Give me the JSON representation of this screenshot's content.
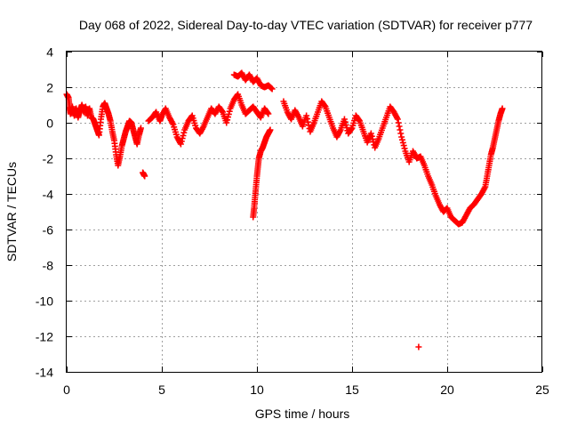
{
  "chart_data": {
    "type": "scatter",
    "title": "Day 068 of 2022, Sidereal Day-to-day VTEC variation (SDTVAR) for receiver p777",
    "xlabel": "GPS time / hours",
    "ylabel": "SDTVAR / TECUs",
    "xlim": [
      0,
      25
    ],
    "ylim": [
      -14,
      4
    ],
    "xticks": [
      0,
      5,
      10,
      15,
      20,
      25
    ],
    "yticks": [
      4,
      2,
      0,
      -2,
      -4,
      -6,
      -8,
      -10,
      -12,
      -14
    ],
    "grid": true,
    "marker": "+",
    "color": "#ff0000",
    "series": [
      {
        "name": "SDTVAR",
        "points": [
          [
            0.0,
            1.6
          ],
          [
            0.1,
            1.4
          ],
          [
            0.15,
            0.9
          ],
          [
            0.2,
            0.5
          ],
          [
            0.3,
            0.9
          ],
          [
            0.4,
            0.4
          ],
          [
            0.5,
            0.8
          ],
          [
            0.6,
            0.3
          ],
          [
            0.7,
            0.7
          ],
          [
            0.8,
            1.0
          ],
          [
            0.9,
            0.6
          ],
          [
            1.0,
            0.9
          ],
          [
            1.1,
            0.4
          ],
          [
            1.2,
            0.8
          ],
          [
            1.3,
            0.3
          ],
          [
            1.4,
            0.2
          ],
          [
            1.5,
            -0.1
          ],
          [
            1.6,
            -0.4
          ],
          [
            1.7,
            -0.7
          ],
          [
            1.8,
            0.2
          ],
          [
            1.9,
            0.9
          ],
          [
            2.0,
            1.1
          ],
          [
            2.1,
            0.8
          ],
          [
            2.2,
            0.5
          ],
          [
            2.3,
            0.1
          ],
          [
            2.4,
            -0.5
          ],
          [
            2.5,
            -1.0
          ],
          [
            2.6,
            -1.8
          ],
          [
            2.7,
            -2.4
          ],
          [
            2.8,
            -1.9
          ],
          [
            2.9,
            -1.3
          ],
          [
            3.0,
            -0.9
          ],
          [
            3.1,
            -0.5
          ],
          [
            3.2,
            -0.2
          ],
          [
            3.3,
            0.1
          ],
          [
            3.4,
            0.0
          ],
          [
            3.5,
            -0.4
          ],
          [
            3.6,
            -0.8
          ],
          [
            3.7,
            -1.2
          ],
          [
            3.8,
            -0.7
          ],
          [
            3.9,
            -0.3
          ],
          [
            4.0,
            -2.8
          ],
          [
            4.1,
            -3.0
          ],
          [
            4.3,
            0.1
          ],
          [
            4.5,
            0.3
          ],
          [
            4.7,
            0.6
          ],
          [
            4.9,
            0.1
          ],
          [
            5.0,
            0.4
          ],
          [
            5.2,
            0.8
          ],
          [
            5.4,
            0.3
          ],
          [
            5.6,
            -0.1
          ],
          [
            5.8,
            -0.8
          ],
          [
            6.0,
            -1.2
          ],
          [
            6.2,
            -0.4
          ],
          [
            6.4,
            0.1
          ],
          [
            6.6,
            0.4
          ],
          [
            6.8,
            -0.3
          ],
          [
            7.0,
            -0.6
          ],
          [
            7.2,
            -0.2
          ],
          [
            7.4,
            0.3
          ],
          [
            7.6,
            0.8
          ],
          [
            7.8,
            0.5
          ],
          [
            8.0,
            0.9
          ],
          [
            8.2,
            0.6
          ],
          [
            8.4,
            0.0
          ],
          [
            8.6,
            0.8
          ],
          [
            8.8,
            1.3
          ],
          [
            9.0,
            1.6
          ],
          [
            9.2,
            1.0
          ],
          [
            9.4,
            0.5
          ],
          [
            9.6,
            0.7
          ],
          [
            9.8,
            0.9
          ],
          [
            10.0,
            0.6
          ],
          [
            10.2,
            0.3
          ],
          [
            10.4,
            0.8
          ],
          [
            10.6,
            0.5
          ],
          [
            8.8,
            2.7
          ],
          [
            9.0,
            2.6
          ],
          [
            9.2,
            2.8
          ],
          [
            9.4,
            2.4
          ],
          [
            9.6,
            2.7
          ],
          [
            9.8,
            2.3
          ],
          [
            10.0,
            2.5
          ],
          [
            10.2,
            2.1
          ],
          [
            10.4,
            2.0
          ],
          [
            10.6,
            2.1
          ],
          [
            10.8,
            1.9
          ],
          [
            9.8,
            -5.3
          ],
          [
            9.85,
            -4.8
          ],
          [
            9.9,
            -4.2
          ],
          [
            9.95,
            -3.6
          ],
          [
            10.0,
            -3.0
          ],
          [
            10.05,
            -2.5
          ],
          [
            10.1,
            -2.0
          ],
          [
            10.2,
            -1.6
          ],
          [
            10.3,
            -1.4
          ],
          [
            10.4,
            -1.1
          ],
          [
            10.5,
            -0.8
          ],
          [
            10.6,
            -0.6
          ],
          [
            10.7,
            -0.4
          ],
          [
            11.4,
            1.2
          ],
          [
            11.6,
            0.6
          ],
          [
            11.8,
            0.2
          ],
          [
            12.0,
            0.7
          ],
          [
            12.2,
            0.3
          ],
          [
            12.4,
            -0.2
          ],
          [
            12.6,
            0.4
          ],
          [
            12.8,
            -0.5
          ],
          [
            13.0,
            0.0
          ],
          [
            13.2,
            0.6
          ],
          [
            13.4,
            1.2
          ],
          [
            13.6,
            0.9
          ],
          [
            13.8,
            0.3
          ],
          [
            14.0,
            -0.3
          ],
          [
            14.2,
            -0.8
          ],
          [
            14.4,
            -0.4
          ],
          [
            14.6,
            0.2
          ],
          [
            14.8,
            -0.6
          ],
          [
            15.0,
            -0.3
          ],
          [
            15.2,
            0.4
          ],
          [
            15.4,
            0.1
          ],
          [
            15.6,
            -0.5
          ],
          [
            15.8,
            -1.1
          ],
          [
            16.0,
            -0.6
          ],
          [
            16.2,
            -1.4
          ],
          [
            16.4,
            -0.9
          ],
          [
            16.6,
            -0.3
          ],
          [
            16.8,
            0.3
          ],
          [
            17.0,
            0.9
          ],
          [
            17.2,
            0.6
          ],
          [
            17.4,
            0.2
          ],
          [
            17.6,
            -0.8
          ],
          [
            17.8,
            -1.6
          ],
          [
            18.0,
            -2.2
          ],
          [
            18.2,
            -1.6
          ],
          [
            18.4,
            -2.0
          ],
          [
            18.6,
            -1.9
          ],
          [
            18.8,
            -2.4
          ],
          [
            19.0,
            -3.0
          ],
          [
            19.2,
            -3.5
          ],
          [
            19.4,
            -4.1
          ],
          [
            19.6,
            -4.6
          ],
          [
            19.8,
            -5.0
          ],
          [
            20.0,
            -4.8
          ],
          [
            20.2,
            -5.3
          ],
          [
            20.4,
            -5.5
          ],
          [
            20.6,
            -5.7
          ],
          [
            20.8,
            -5.6
          ],
          [
            21.0,
            -5.2
          ],
          [
            21.2,
            -4.8
          ],
          [
            21.4,
            -4.6
          ],
          [
            21.6,
            -4.3
          ],
          [
            21.8,
            -4.0
          ],
          [
            22.0,
            -3.6
          ],
          [
            22.1,
            -3.0
          ],
          [
            22.2,
            -2.4
          ],
          [
            22.3,
            -1.8
          ],
          [
            22.4,
            -1.4
          ],
          [
            22.5,
            -0.9
          ],
          [
            22.6,
            -0.4
          ],
          [
            22.7,
            0.1
          ],
          [
            22.8,
            0.5
          ],
          [
            22.9,
            0.8
          ],
          [
            18.5,
            -12.6
          ]
        ]
      }
    ]
  }
}
